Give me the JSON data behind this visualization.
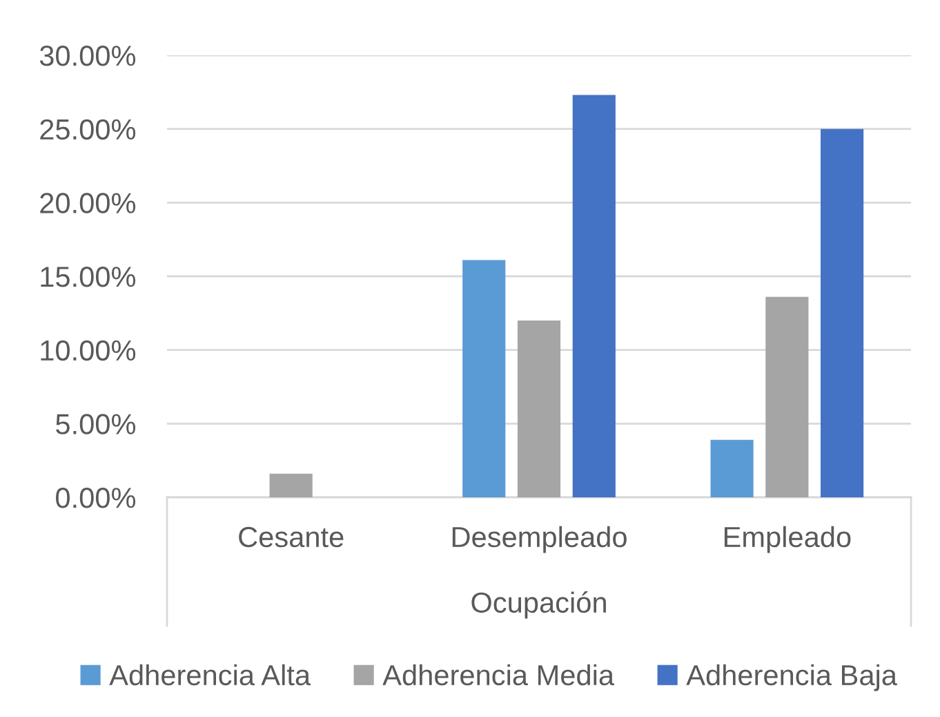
{
  "chart_data": {
    "type": "bar",
    "xlabel": "Ocupación",
    "categories": [
      "Cesante",
      "Desempleado",
      "Empleado"
    ],
    "series": [
      {
        "name": "Adherencia Alta",
        "color": "#5b9bd5",
        "values": [
          0,
          16.1,
          3.9
        ]
      },
      {
        "name": "Adherencia Media",
        "color": "#a5a5a5",
        "values": [
          1.6,
          12.0,
          13.6
        ]
      },
      {
        "name": "Adherencia Baja",
        "color": "#4472c4",
        "values": [
          0,
          27.3,
          25.0
        ]
      }
    ],
    "ylim": [
      0,
      30
    ],
    "yticks": [
      {
        "value": 0,
        "label": "0.00%"
      },
      {
        "value": 5,
        "label": "5.00%"
      },
      {
        "value": 10,
        "label": "10.00%"
      },
      {
        "value": 15,
        "label": "15.00%"
      },
      {
        "value": 20,
        "label": "20.00%"
      },
      {
        "value": 25,
        "label": "25.00%"
      },
      {
        "value": 30,
        "label": "30.00%"
      }
    ],
    "grid": "y",
    "legend": "bottom"
  }
}
